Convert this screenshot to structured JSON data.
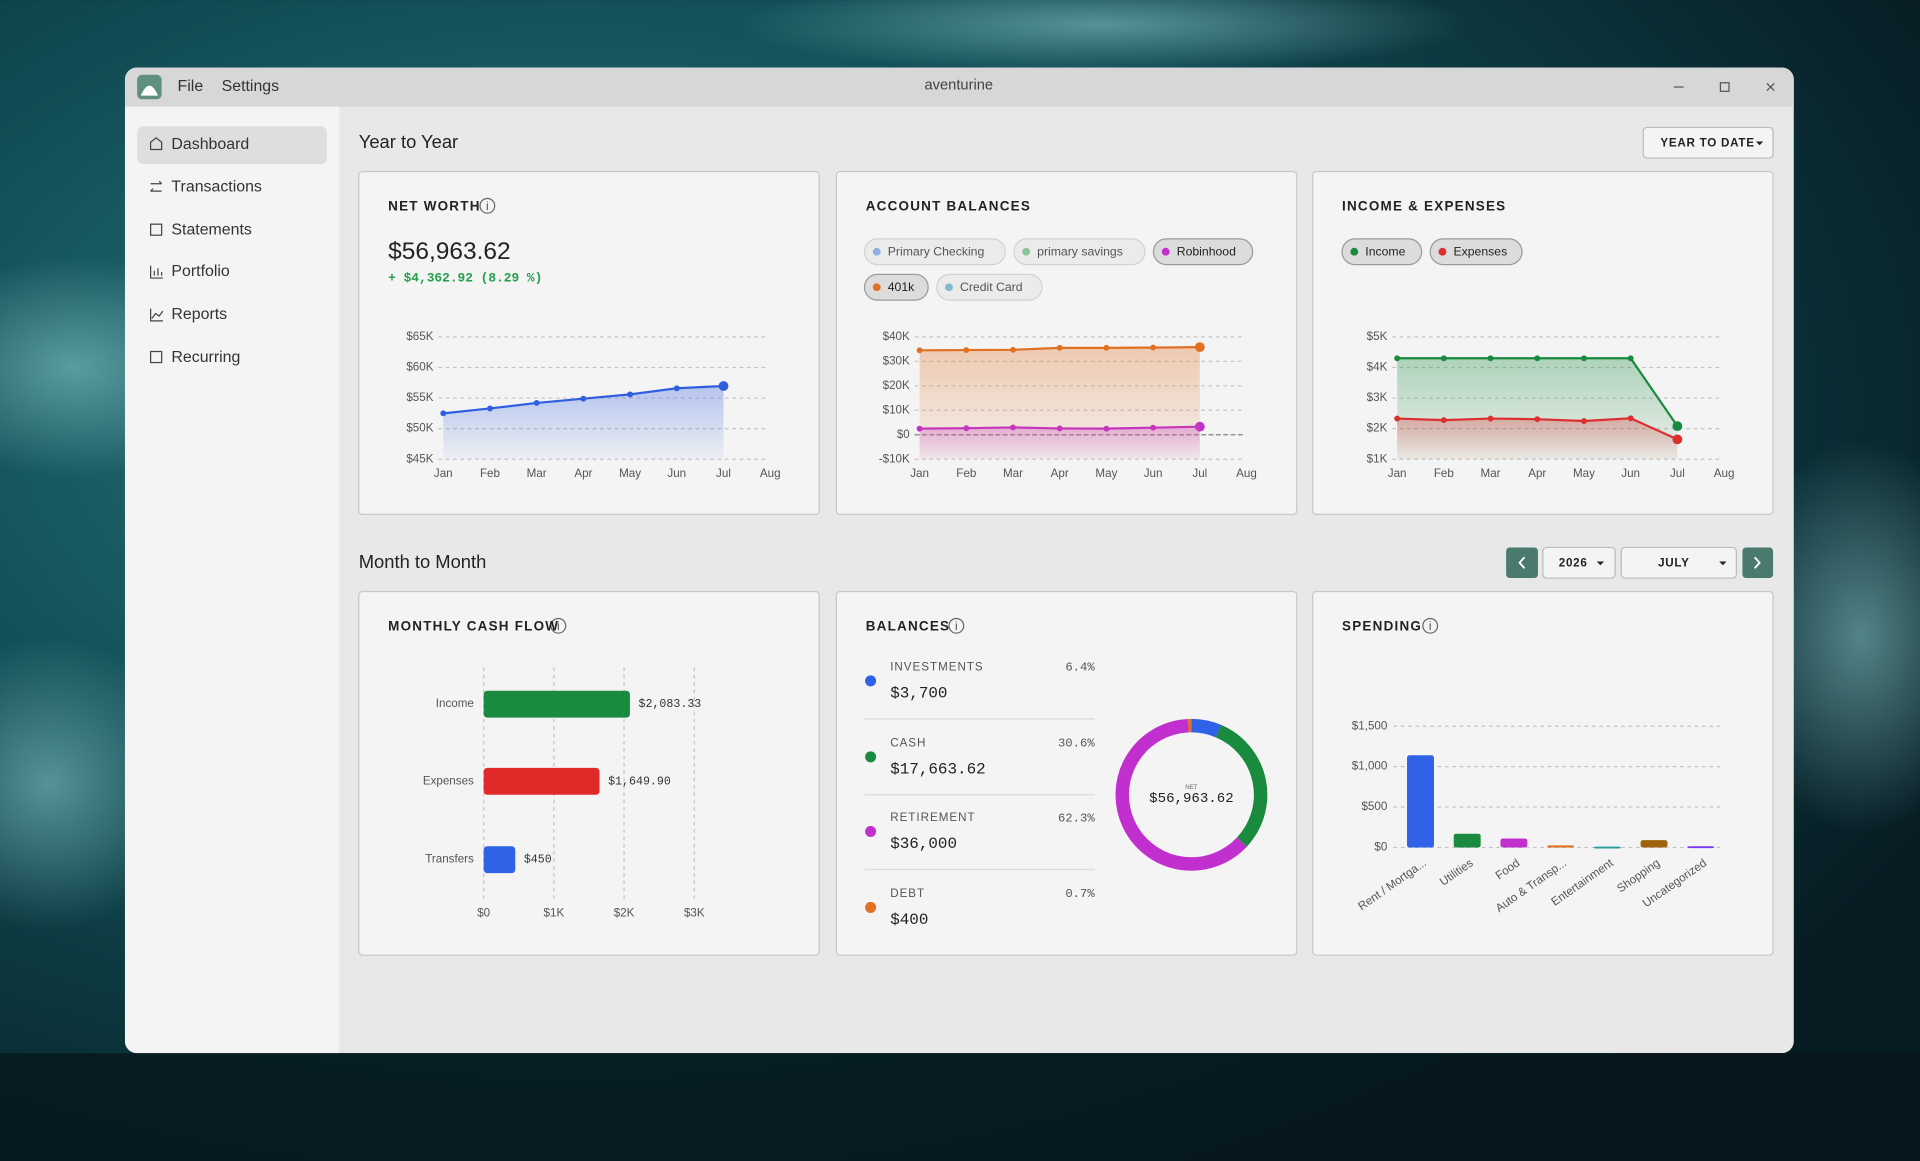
{
  "window": {
    "menu": [
      "File",
      "Settings"
    ],
    "title": "aventurine"
  },
  "sidebar": {
    "items": [
      "Dashboard",
      "Transactions",
      "Statements",
      "Portfolio",
      "Reports",
      "Recurring"
    ]
  },
  "sections": {
    "year": {
      "title": "Year to Year",
      "range": "YEAR TO DATE"
    },
    "month": {
      "title": "Month to Month",
      "year": "2026",
      "month": "JULY"
    }
  },
  "net_worth": {
    "value": "$56,963.62",
    "change": "+ $4,362.92 (8.29 %)"
  },
  "chart_data": [
    {
      "type": "line",
      "title": "NET WORTH",
      "categories": [
        "Jan",
        "Feb",
        "Mar",
        "Apr",
        "May",
        "Jun",
        "Jul",
        "Aug"
      ],
      "values": [
        52500,
        53300,
        54200,
        54900,
        55600,
        56600,
        56963.62,
        null
      ],
      "color": "#2f5fe0",
      "ylim": [
        45000,
        65000
      ],
      "yticks": [
        {
          "value": 45000,
          "label": "$45K"
        },
        {
          "value": 50000,
          "label": "$50K"
        },
        {
          "value": 55000,
          "label": "$55K"
        },
        {
          "value": 60000,
          "label": "$60K"
        },
        {
          "value": 65000,
          "label": "$65K"
        }
      ],
      "grid": true,
      "area": true
    },
    {
      "type": "line",
      "title": "ACCOUNT BALANCES",
      "categories": [
        "Jan",
        "Feb",
        "Mar",
        "Apr",
        "May",
        "Jun",
        "Jul",
        "Aug"
      ],
      "series": [
        {
          "name": "Primary Checking",
          "color": "#8fb1e3",
          "active": false
        },
        {
          "name": "primary savings",
          "color": "#8cc59d",
          "active": false
        },
        {
          "name": "Robinhood",
          "color": "#c22fcf",
          "active": true,
          "values": [
            2500,
            2700,
            3000,
            2600,
            2500,
            2900,
            3300,
            null
          ]
        },
        {
          "name": "401k",
          "color": "#e27022",
          "active": true,
          "values": [
            34500,
            34600,
            34700,
            35500,
            35500,
            35600,
            35800,
            null
          ]
        },
        {
          "name": "Credit Card",
          "color": "#7fbcc9",
          "active": false
        }
      ],
      "ylim": [
        -10000,
        40000
      ],
      "yticks": [
        {
          "value": -10000,
          "label": "-$10K"
        },
        {
          "value": 0,
          "label": "$0"
        },
        {
          "value": 10000,
          "label": "$10K"
        },
        {
          "value": 20000,
          "label": "$20K"
        },
        {
          "value": 30000,
          "label": "$30K"
        },
        {
          "value": 40000,
          "label": "$40K"
        }
      ],
      "grid": true,
      "area": true,
      "zero_line": true
    },
    {
      "type": "line",
      "title": "INCOME & EXPENSES",
      "categories": [
        "Jan",
        "Feb",
        "Mar",
        "Apr",
        "May",
        "Jun",
        "Jul",
        "Aug"
      ],
      "series": [
        {
          "name": "Income",
          "color": "#1a8a3e",
          "active": true,
          "values": [
            4300,
            4300,
            4300,
            4300,
            4300,
            4300,
            2083.33,
            null
          ]
        },
        {
          "name": "Expenses",
          "color": "#dc2f2f",
          "active": true,
          "values": [
            2330,
            2280,
            2330,
            2310,
            2250,
            2340,
            1649.9,
            null
          ]
        }
      ],
      "ylim": [
        1000,
        5000
      ],
      "yticks": [
        {
          "value": 1000,
          "label": "$1K"
        },
        {
          "value": 2000,
          "label": "$2K"
        },
        {
          "value": 3000,
          "label": "$3K"
        },
        {
          "value": 4000,
          "label": "$4K"
        },
        {
          "value": 5000,
          "label": "$5K"
        }
      ],
      "grid": true,
      "area": true
    },
    {
      "type": "hbar",
      "title": "MONTHLY CASH FLOW",
      "categories": [
        "Income",
        "Expenses",
        "Transfers"
      ],
      "values": [
        2083.33,
        1649.9,
        450
      ],
      "value_labels": [
        "$2,083.33",
        "$1,649.90",
        "$450"
      ],
      "colors": [
        "#1a8a3e",
        "#e02a2a",
        "#2f62e6"
      ],
      "xlim": [
        0,
        3000
      ],
      "xticks": [
        {
          "value": 0,
          "label": "$0"
        },
        {
          "value": 1000,
          "label": "$1K"
        },
        {
          "value": 2000,
          "label": "$2K"
        },
        {
          "value": 3000,
          "label": "$3K"
        }
      ],
      "grid": true
    },
    {
      "type": "donut",
      "title": "BALANCES",
      "categories": [
        "INVESTMENTS",
        "CASH",
        "RETIREMENT",
        "DEBT"
      ],
      "values": [
        6.4,
        30.6,
        62.3,
        0.7
      ],
      "value_labels": [
        "6.4%",
        "30.6%",
        "62.3%",
        "0.7%"
      ],
      "amount_labels": [
        "$3,700",
        "$17,663.62",
        "$36,000",
        "$400"
      ],
      "colors": [
        "#2f62e6",
        "#1a8a3e",
        "#c22fcf",
        "#e27022"
      ],
      "center_label": "NET",
      "center_value": "$56,963.62"
    },
    {
      "type": "bar",
      "title": "SPENDING",
      "categories": [
        "Rent / Mortga...",
        "Utilities",
        "Food",
        "Auto & Transp...",
        "Entertainment",
        "Shopping",
        "Uncategorized"
      ],
      "values": [
        1140,
        170,
        110,
        25,
        10,
        90,
        15
      ],
      "colors": [
        "#2f62e6",
        "#1a8a3e",
        "#c22fcf",
        "#e27022",
        "#2a9a9a",
        "#a0620a",
        "#7c3aed"
      ],
      "ylim": [
        0,
        1500
      ],
      "yticks": [
        {
          "value": 0,
          "label": "$0"
        },
        {
          "value": 500,
          "label": "$500"
        },
        {
          "value": 1000,
          "label": "$1,000"
        },
        {
          "value": 1500,
          "label": "$1,500"
        }
      ],
      "grid": true
    }
  ]
}
